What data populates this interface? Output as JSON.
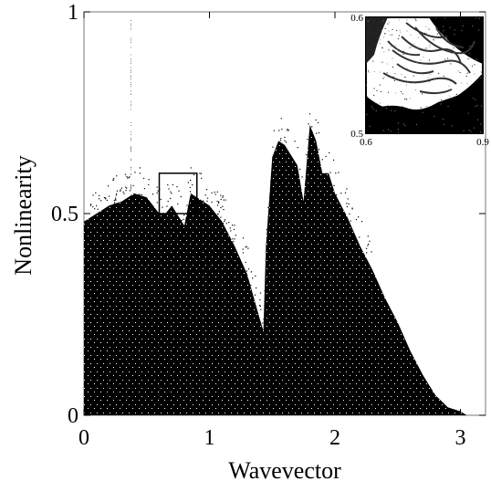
{
  "chart_data": [
    {
      "type": "area",
      "title": "",
      "xlabel": "Wavevector",
      "ylabel": "Nonlinearity",
      "xlim": [
        0,
        3.2
      ],
      "ylim": [
        0,
        1
      ],
      "xticks": [
        {
          "value": 0,
          "label": "0"
        },
        {
          "value": 1,
          "label": "1"
        },
        {
          "value": 2,
          "label": "2"
        },
        {
          "value": 3,
          "label": "3"
        }
      ],
      "yticks": [
        {
          "value": 0,
          "label": "0"
        },
        {
          "value": 0.5,
          "label": "0.5"
        },
        {
          "value": 1,
          "label": "1"
        }
      ],
      "grid": false,
      "legend": "none",
      "fill_color": "#000000",
      "boundary": {
        "x": [
          0.0,
          0.1,
          0.2,
          0.3,
          0.4,
          0.5,
          0.6,
          0.65,
          0.7,
          0.8,
          0.85,
          0.9,
          1.0,
          1.1,
          1.2,
          1.3,
          1.4,
          1.43,
          1.45,
          1.5,
          1.55,
          1.6,
          1.7,
          1.75,
          1.8,
          1.85,
          1.9,
          1.95,
          2.0,
          2.1,
          2.2,
          2.3,
          2.4,
          2.5,
          2.6,
          2.7,
          2.8,
          2.9,
          3.0,
          3.05,
          3.1
        ],
        "y": [
          0.48,
          0.5,
          0.52,
          0.53,
          0.55,
          0.54,
          0.5,
          0.5,
          0.52,
          0.47,
          0.55,
          0.54,
          0.52,
          0.48,
          0.42,
          0.35,
          0.24,
          0.21,
          0.42,
          0.64,
          0.68,
          0.67,
          0.62,
          0.53,
          0.72,
          0.68,
          0.6,
          0.6,
          0.55,
          0.49,
          0.42,
          0.36,
          0.29,
          0.23,
          0.16,
          0.1,
          0.05,
          0.02,
          0.01,
          0.0,
          0.0
        ]
      },
      "highlight_box": {
        "x": [
          0.6,
          0.9
        ],
        "y": [
          0.5,
          0.6
        ]
      }
    },
    {
      "type": "scatter",
      "role": "inset",
      "title": "",
      "xlim": [
        0.6,
        0.9
      ],
      "ylim": [
        0.5,
        0.6
      ],
      "xticks": [
        {
          "value": 0.6,
          "label": "0.6"
        },
        {
          "value": 0.9,
          "label": "0.9"
        }
      ],
      "yticks": [
        {
          "value": 0.5,
          "label": "0.5"
        },
        {
          "value": 0.6,
          "label": "0.6"
        }
      ],
      "grid": false,
      "legend": "none"
    }
  ]
}
